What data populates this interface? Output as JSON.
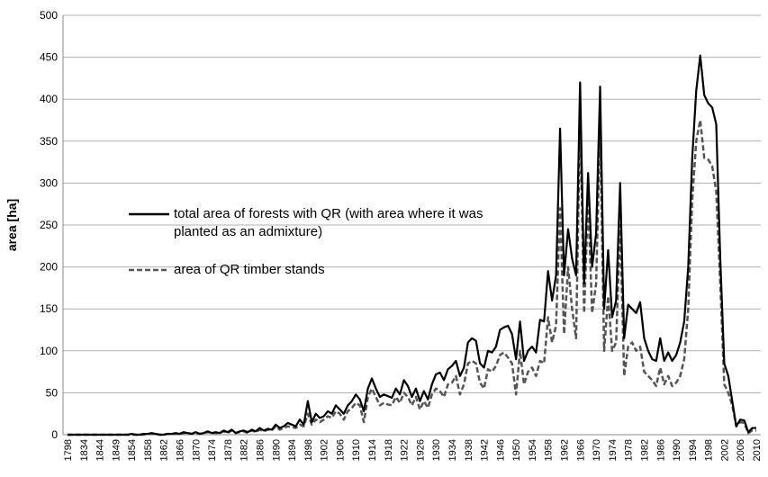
{
  "chart_data": {
    "type": "line",
    "y_label": "area [ha]",
    "categories": [
      "1798",
      null,
      null,
      null,
      "1834",
      null,
      null,
      null,
      "1844",
      null,
      null,
      null,
      "1849",
      null,
      null,
      null,
      "1854",
      null,
      null,
      null,
      "1858",
      null,
      null,
      null,
      "1862",
      null,
      null,
      null,
      "1866",
      null,
      null,
      null,
      "1870",
      null,
      null,
      null,
      "1874",
      null,
      null,
      null,
      "1878",
      null,
      null,
      null,
      "1882",
      null,
      null,
      null,
      "1886",
      null,
      null,
      null,
      "1890",
      null,
      null,
      null,
      "1894",
      null,
      null,
      null,
      "1898",
      null,
      null,
      null,
      "1902",
      null,
      null,
      null,
      "1906",
      null,
      null,
      null,
      "1910",
      null,
      null,
      null,
      "1914",
      null,
      null,
      null,
      "1918",
      null,
      null,
      null,
      "1922",
      null,
      null,
      null,
      "1926",
      null,
      null,
      null,
      "1930",
      null,
      null,
      null,
      "1934",
      null,
      null,
      null,
      "1938",
      null,
      null,
      null,
      "1942",
      null,
      null,
      null,
      "1946",
      null,
      null,
      null,
      "1950",
      null,
      null,
      null,
      "1954",
      null,
      null,
      null,
      "1958",
      null,
      null,
      null,
      "1962",
      null,
      null,
      null,
      "1966",
      null,
      null,
      null,
      "1970",
      null,
      null,
      null,
      "1974",
      null,
      null,
      null,
      "1978",
      null,
      null,
      null,
      "1982",
      null,
      null,
      null,
      "1986",
      null,
      null,
      null,
      "1990",
      null,
      null,
      null,
      "1994",
      null,
      null,
      null,
      "1998",
      null,
      null,
      null,
      "2002",
      null,
      null,
      null,
      "2006",
      null,
      null,
      null,
      "2010"
    ],
    "series": [
      {
        "name": "total area of forests with QR (with area where it was planted as an admixture)",
        "color": "#000000",
        "dash": false,
        "values": [
          0,
          0,
          0,
          0,
          0,
          0,
          0,
          0,
          0,
          0,
          0,
          0,
          0,
          0,
          0,
          0,
          1,
          0,
          0,
          1,
          1,
          2,
          1,
          0,
          0,
          1,
          1,
          2,
          1,
          3,
          2,
          1,
          3,
          1,
          2,
          4,
          2,
          3,
          2,
          5,
          3,
          6,
          2,
          4,
          5,
          3,
          6,
          4,
          8,
          5,
          7,
          6,
          12,
          8,
          10,
          14,
          12,
          10,
          18,
          12,
          40,
          15,
          25,
          20,
          22,
          28,
          25,
          35,
          30,
          25,
          35,
          40,
          48,
          42,
          28,
          55,
          67,
          55,
          45,
          48,
          46,
          44,
          55,
          48,
          65,
          58,
          45,
          55,
          40,
          52,
          42,
          60,
          72,
          74,
          65,
          78,
          82,
          88,
          70,
          80,
          110,
          115,
          112,
          85,
          80,
          100,
          98,
          105,
          125,
          128,
          130,
          120,
          90,
          135,
          88,
          100,
          105,
          98,
          137,
          135,
          195,
          160,
          190,
          365,
          190,
          245,
          210,
          190,
          420,
          180,
          312,
          200,
          240,
          415,
          150,
          220,
          140,
          160,
          300,
          115,
          155,
          150,
          145,
          158,
          115,
          100,
          90,
          88,
          115,
          88,
          98,
          88,
          95,
          110,
          135,
          200,
          330,
          410,
          452,
          405,
          395,
          390,
          370,
          210,
          85,
          70,
          40,
          10,
          18,
          17,
          3,
          8,
          8
        ]
      },
      {
        "name": "area of QR timber stands",
        "color": "#555555",
        "dash": true,
        "values": [
          0,
          0,
          0,
          0,
          0,
          0,
          0,
          0,
          0,
          0,
          0,
          0,
          0,
          0,
          0,
          0,
          0,
          0,
          0,
          0,
          1,
          1,
          1,
          0,
          0,
          1,
          1,
          1,
          1,
          2,
          2,
          1,
          2,
          1,
          2,
          3,
          2,
          2,
          2,
          4,
          2,
          5,
          2,
          3,
          4,
          2,
          5,
          3,
          6,
          4,
          6,
          5,
          10,
          6,
          8,
          10,
          9,
          8,
          12,
          10,
          25,
          12,
          18,
          15,
          18,
          22,
          20,
          28,
          25,
          18,
          28,
          32,
          38,
          35,
          15,
          45,
          55,
          45,
          35,
          38,
          36,
          35,
          45,
          38,
          50,
          45,
          35,
          45,
          30,
          40,
          32,
          48,
          55,
          52,
          45,
          60,
          62,
          70,
          48,
          60,
          85,
          88,
          85,
          62,
          55,
          78,
          75,
          82,
          95,
          98,
          92,
          85,
          48,
          100,
          60,
          75,
          80,
          70,
          88,
          85,
          140,
          110,
          130,
          270,
          120,
          200,
          150,
          115,
          380,
          145,
          280,
          145,
          180,
          370,
          100,
          165,
          100,
          110,
          250,
          70,
          105,
          110,
          100,
          105,
          75,
          70,
          65,
          58,
          80,
          60,
          70,
          58,
          62,
          70,
          90,
          150,
          280,
          350,
          375,
          330,
          328,
          320,
          290,
          180,
          60,
          50,
          35,
          10,
          15,
          14,
          2,
          5,
          5
        ]
      }
    ],
    "ylim": [
      0,
      500
    ],
    "yticks": [
      0,
      50,
      100,
      150,
      200,
      250,
      300,
      350,
      400,
      450,
      500
    ],
    "grid": true
  }
}
